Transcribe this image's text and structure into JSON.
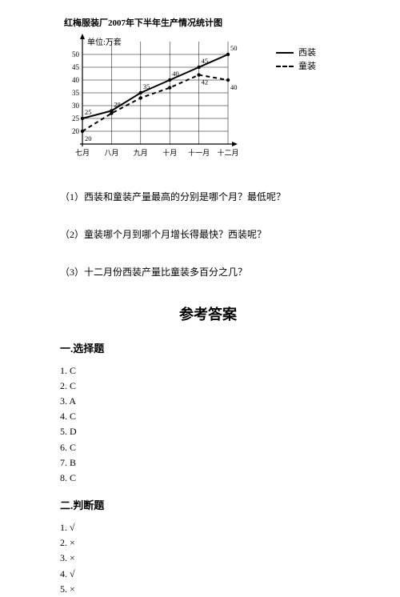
{
  "chart": {
    "title": "红梅服装厂2007年下半年生产情况统计图",
    "type": "line",
    "y_unit_label": "单位:万套",
    "x_categories": [
      "七月",
      "八月",
      "九月",
      "十月",
      "十一月",
      "十二月"
    ],
    "ylim": [
      15,
      55
    ],
    "ytick_step": 5,
    "yticks": [
      20,
      25,
      30,
      35,
      40,
      45,
      50
    ],
    "series": [
      {
        "name": "西装",
        "style": "solid",
        "values": [
          25,
          28,
          35,
          40,
          45,
          50
        ],
        "point_labels": [
          "25",
          "28",
          "35",
          "40",
          "45",
          "50"
        ],
        "color": "#000000",
        "line_width": 2,
        "marker": "circle"
      },
      {
        "name": "童装",
        "style": "dashed",
        "values": [
          20,
          27,
          33,
          37,
          42,
          40
        ],
        "point_labels": [
          "20",
          "",
          "",
          "",
          "42",
          "40"
        ],
        "color": "#000000",
        "line_width": 2,
        "marker": "circle"
      }
    ],
    "legend": {
      "items": [
        "西装",
        "童装"
      ]
    },
    "background_color": "#ffffff",
    "grid_color": "#000000"
  },
  "questions": {
    "q1": "（1）西装和童装产量最高的分别是哪个月？最低呢？",
    "q2": "（2）童装哪个月到哪个月增长得最快？西装呢？",
    "q3": "（3）十二月份西装产量比童装多百分之几？"
  },
  "answers": {
    "title": "参考答案",
    "section1": {
      "header": "一.选择题",
      "items": [
        "1. C",
        "2. C",
        "3. A",
        "4. C",
        "5. D",
        "6. C",
        "7. B",
        "8. C"
      ]
    },
    "section2": {
      "header": "二.判断题",
      "items": [
        "1. √",
        "2. ×",
        "3. ×",
        "4. √",
        "5. ×"
      ]
    }
  }
}
